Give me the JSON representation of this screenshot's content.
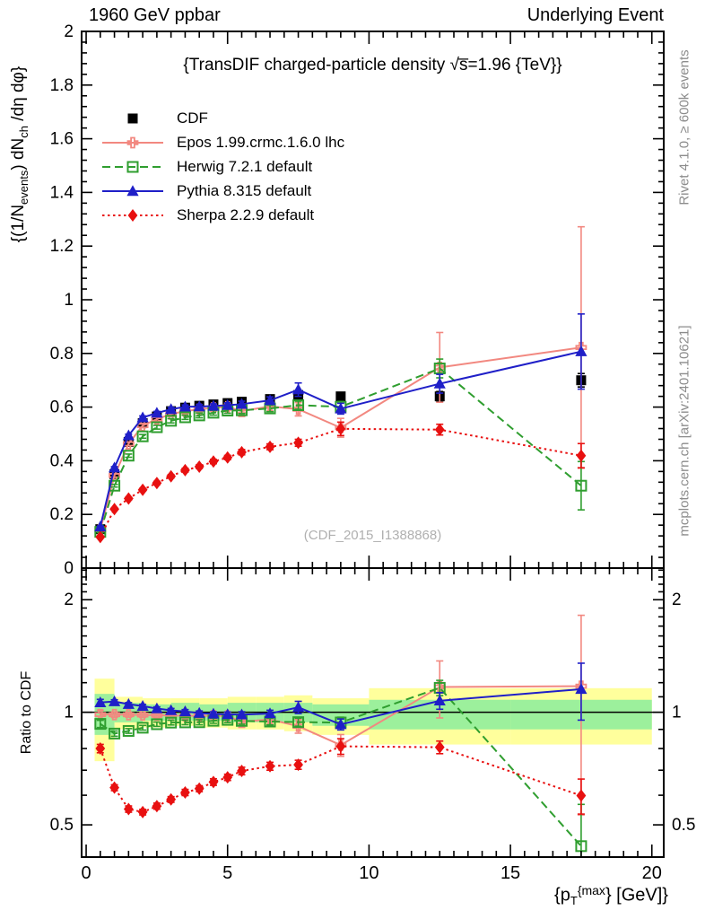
{
  "header": {
    "left": "1960 GeV ppbar",
    "right": "Underlying Event"
  },
  "plot_title": "{TransDIF charged-particle density √s̅=1.96 {TeV}}",
  "watermark": "(CDF_2015_I1388868)",
  "side_notes": {
    "top_right": "Rivet 4.1.0, ≥ 600k events",
    "bottom_right": "mcplots.cern.ch [arXiv:2401.10621]"
  },
  "y_axis_title": {
    "pre": "{(1/N",
    "sub1": "events",
    "mid": ") dN",
    "sub2": "ch",
    "post": " /dη dφ}"
  },
  "x_axis_title": {
    "pre": "{p",
    "sub": "T",
    "sup": "{max",
    "post": "} [GeV]}"
  },
  "ratio_axis_title": "Ratio to CDF",
  "legend": [
    {
      "label": "CDF",
      "color": "#000000",
      "marker": "square-filled",
      "line": "none"
    },
    {
      "label": "Epos 1.99.crmc.1.6.0 lhc",
      "color": "#f28880",
      "marker": "cross-open",
      "line": "solid"
    },
    {
      "label": "Herwig 7.2.1 default",
      "color": "#2f9e2f",
      "marker": "square-open",
      "line": "dashed"
    },
    {
      "label": "Pythia 8.315 default",
      "color": "#1f1fc8",
      "marker": "triangle-filled",
      "line": "solid"
    },
    {
      "label": "Sherpa 2.2.9 default",
      "color": "#e81010",
      "marker": "diamond-filled",
      "line": "dotted"
    }
  ],
  "chart_data": {
    "type": "line",
    "title": "{TransDIF charged-particle density √s=1.96 {TeV}}",
    "xlabel": "{p_T^{max}} [GeV]}",
    "ylabel": "{(1/N_events) dN_ch /dη dφ}",
    "ratio_label": "Ratio to CDF",
    "x": [
      0.5,
      1.0,
      1.5,
      2.0,
      2.5,
      3.0,
      3.5,
      4.0,
      4.5,
      5.0,
      5.5,
      6.5,
      7.5,
      9.0,
      12.5,
      17.5
    ],
    "xlim": [
      -0.16,
      20.42
    ],
    "x_major_ticks": [
      0,
      5,
      10,
      15,
      20
    ],
    "x_major_labels": [
      "0",
      "5",
      "10",
      "15",
      "20"
    ],
    "x_minor_step": 0.5,
    "main_ylim": [
      0,
      2
    ],
    "main_y_major_ticks": [
      0,
      0.2,
      0.4,
      0.6,
      0.8,
      1.0,
      1.2,
      1.4,
      1.6,
      1.8,
      2.0
    ],
    "main_y_major_labels": [
      "0",
      "0.2",
      "0.4",
      "0.6",
      "0.8",
      "1",
      "1.2",
      "1.4",
      "1.6",
      "1.8",
      "2"
    ],
    "main_y_minor_step": 0.04,
    "ratio_ylim": [
      0.41,
      2.43
    ],
    "ratio_scale": "log",
    "ratio_labeled_ticks": [
      0.5,
      1,
      2
    ],
    "ratio_labels": [
      "0.5",
      "1",
      "2"
    ],
    "ratio_minor_ticks": [
      0.6,
      0.7,
      0.8,
      0.9,
      1.1,
      1.2,
      1.3,
      1.4,
      1.5,
      1.6,
      1.7,
      1.8,
      1.9,
      2.1,
      2.2,
      2.3,
      2.4
    ],
    "series": [
      {
        "name": "CDF",
        "color": "#000000",
        "marker": "square-filled",
        "line": "none",
        "in_ratio": false,
        "values": [
          0.145,
          0.35,
          0.47,
          0.54,
          0.565,
          0.585,
          0.598,
          0.605,
          0.61,
          0.615,
          0.62,
          0.63,
          0.645,
          0.64,
          0.64,
          0.7
        ],
        "err": [
          0.006,
          0.008,
          0.009,
          0.01,
          0.01,
          0.01,
          0.01,
          0.01,
          0.01,
          0.011,
          0.011,
          0.012,
          0.013,
          0.014,
          0.018,
          0.025
        ]
      },
      {
        "name": "Epos 1.99.crmc.1.6.0 lhc",
        "color": "#f28880",
        "marker": "cross-open",
        "line": "solid",
        "in_ratio": true,
        "values": [
          0.143,
          0.345,
          0.463,
          0.531,
          0.555,
          0.574,
          0.585,
          0.592,
          0.597,
          0.601,
          0.585,
          0.603,
          0.592,
          0.523,
          0.748,
          0.822
        ],
        "err": [
          0.004,
          0.006,
          0.007,
          0.008,
          0.009,
          0.009,
          0.01,
          0.011,
          0.012,
          0.013,
          0.02,
          0.018,
          0.025,
          0.035,
          0.13,
          0.45
        ]
      },
      {
        "name": "Herwig 7.2.1 default",
        "color": "#2f9e2f",
        "marker": "square-open",
        "line": "dashed",
        "in_ratio": true,
        "values": [
          0.135,
          0.307,
          0.419,
          0.491,
          0.525,
          0.549,
          0.562,
          0.569,
          0.579,
          0.587,
          0.588,
          0.595,
          0.607,
          0.601,
          0.744,
          0.307
        ],
        "err": [
          0.003,
          0.005,
          0.006,
          0.007,
          0.007,
          0.008,
          0.008,
          0.009,
          0.009,
          0.01,
          0.012,
          0.012,
          0.015,
          0.02,
          0.035,
          0.09
        ]
      },
      {
        "name": "Sherpa 2.2.9 default",
        "color": "#e81010",
        "marker": "diamond-filled",
        "line": "dotted",
        "in_ratio": true,
        "values": [
          0.116,
          0.22,
          0.259,
          0.292,
          0.317,
          0.342,
          0.365,
          0.378,
          0.397,
          0.412,
          0.432,
          0.452,
          0.467,
          0.519,
          0.516,
          0.419
        ],
        "err": [
          0.003,
          0.004,
          0.005,
          0.005,
          0.006,
          0.006,
          0.007,
          0.007,
          0.008,
          0.008,
          0.01,
          0.011,
          0.013,
          0.025,
          0.02,
          0.045
        ]
      },
      {
        "name": "Pythia 8.315 default",
        "color": "#1f1fc8",
        "marker": "triangle-filled",
        "line": "solid",
        "in_ratio": true,
        "values": [
          0.154,
          0.374,
          0.494,
          0.561,
          0.578,
          0.592,
          0.601,
          0.602,
          0.604,
          0.607,
          0.611,
          0.625,
          0.665,
          0.594,
          0.687,
          0.807
        ],
        "err": [
          0.003,
          0.004,
          0.005,
          0.006,
          0.006,
          0.007,
          0.007,
          0.008,
          0.008,
          0.009,
          0.011,
          0.013,
          0.025,
          0.02,
          0.035,
          0.14
        ]
      }
    ],
    "ratio_reference": 1,
    "uncertainty_bands": {
      "bin_edges": [
        0.3,
        1,
        2,
        3,
        4,
        5,
        6,
        7,
        8,
        10,
        15,
        20
      ],
      "yellow_color": "#ffff9c",
      "green_color": "#9cf09c",
      "yellow": [
        [
          0.74,
          1.23
        ],
        [
          0.9,
          1.1
        ],
        [
          0.91,
          1.09
        ],
        [
          0.92,
          1.09
        ],
        [
          0.91,
          1.09
        ],
        [
          0.9,
          1.1
        ],
        [
          0.9,
          1.1
        ],
        [
          0.89,
          1.11
        ],
        [
          0.87,
          1.09
        ],
        [
          0.82,
          1.16
        ],
        [
          0.82,
          1.16
        ]
      ],
      "green": [
        [
          0.87,
          1.12
        ],
        [
          0.94,
          1.06
        ],
        [
          0.95,
          1.05
        ],
        [
          0.95,
          1.06
        ],
        [
          0.95,
          1.05
        ],
        [
          0.94,
          1.06
        ],
        [
          0.94,
          1.06
        ],
        [
          0.94,
          1.06
        ],
        [
          0.92,
          1.05
        ],
        [
          0.9,
          1.08
        ],
        [
          0.9,
          1.08
        ]
      ]
    }
  }
}
